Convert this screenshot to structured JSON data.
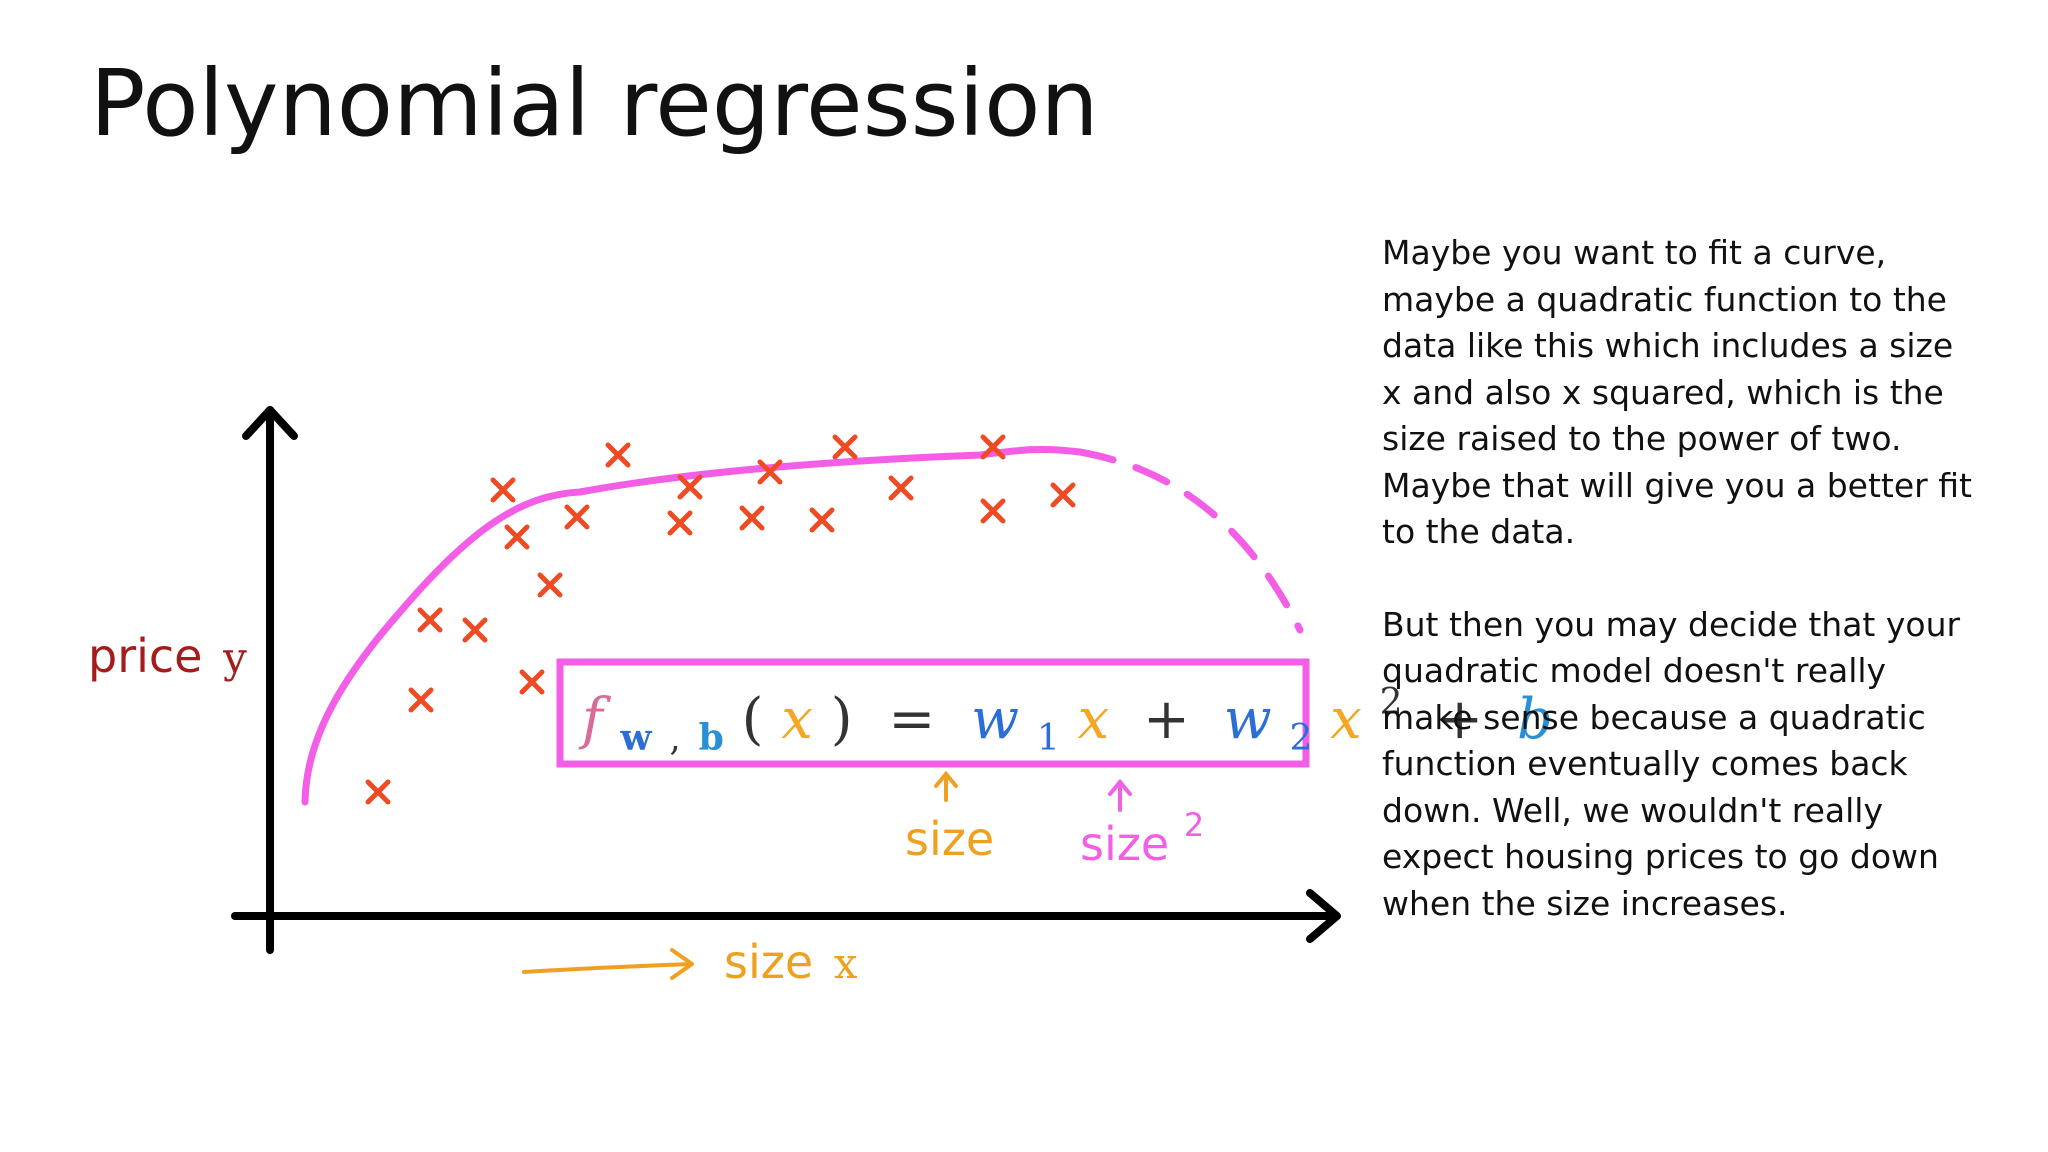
{
  "slide": {
    "title": "Polynomial regression"
  },
  "diagram": {
    "y_axis_label": {
      "word": "price",
      "var": "y"
    },
    "x_axis_label": {
      "word": "size",
      "var": "x"
    },
    "formula": {
      "f": "f",
      "sub_w": "w",
      "sub_sep": ",",
      "sub_b": "b",
      "lparen": "(",
      "x_arg": "x",
      "rparen": ")",
      "equals": "=",
      "w1": "w",
      "w1_sub": "1",
      "x1": "x",
      "plus1": "+",
      "w2": "w",
      "w2_sub": "2",
      "x2": "x",
      "x2_sup": "2",
      "plus2": "+",
      "b": "b"
    },
    "annotation_size": "size",
    "annotation_size_squared": {
      "word": "size",
      "sup": "2"
    },
    "colors": {
      "axis": "#000000",
      "points": "#ee4a24",
      "curve": "#f25fe6",
      "formula_box": "#f25fe6",
      "formula_f": "#d96b9a",
      "formula_x": "#f5a623",
      "formula_w": "#2b6fd6",
      "formula_b": "#2b8fd6",
      "price_label": "#a31d1d",
      "size_label": "#f0a020",
      "size_squared_label": "#f25fe6"
    },
    "marker_symbol": "×"
  },
  "narration": {
    "paragraphs": [
      "Maybe you want to fit a curve, maybe a quadratic function to the data like this which includes a size x and also x squared, which is the size raised to the power of two. Maybe that will give you a better fit to the data.",
      "But then you may decide that your quadratic model doesn't really make sense because a quadratic function eventually comes back down. Well, we wouldn't really expect housing prices to go down when the size increases."
    ]
  }
}
